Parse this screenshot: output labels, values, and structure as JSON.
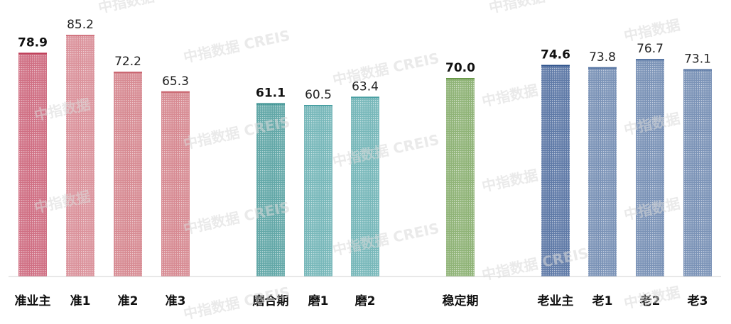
{
  "chart_data": {
    "type": "bar",
    "categories": [
      "准业主",
      "准1",
      "准2",
      "准3",
      "磨合期",
      "磨1",
      "磨2",
      "稳定期",
      "老业主",
      "老1",
      "老2",
      "老3"
    ],
    "values": [
      78.9,
      85.2,
      72.2,
      65.3,
      61.1,
      60.5,
      63.4,
      70.0,
      74.6,
      73.8,
      76.7,
      73.1
    ],
    "value_labels": [
      "78.9",
      "85.2",
      "72.2",
      "65.3",
      "61.1",
      "60.5",
      "63.4",
      "70.0",
      "74.6",
      "73.8",
      "76.7",
      "73.1"
    ],
    "summary_bars": [
      true,
      false,
      false,
      false,
      true,
      false,
      false,
      true,
      true,
      false,
      false,
      false
    ],
    "groups": [
      {
        "bars": [
          0,
          1,
          2,
          3
        ],
        "colors": [
          "#c0405a",
          "#cf6f7a",
          "#c9646e",
          "#c9646e"
        ]
      },
      {
        "bars": [
          4,
          5,
          6
        ],
        "colors": [
          "#2e8a8a",
          "#4aa0a3",
          "#4aa0a3"
        ]
      },
      {
        "bars": [
          7
        ],
        "colors": [
          "#6a9a4a"
        ]
      },
      {
        "bars": [
          8,
          9,
          10,
          11
        ],
        "colors": [
          "#2a4f8a",
          "#4f6f9f",
          "#4f6f9f",
          "#4f6f9f"
        ]
      }
    ],
    "ylim": [
      0,
      100
    ],
    "grid": false,
    "legend": "none",
    "title": "",
    "xlabel": "",
    "ylabel": ""
  },
  "watermark": {
    "text": "中指数据 CREIS",
    "short_text": "中指数据"
  }
}
